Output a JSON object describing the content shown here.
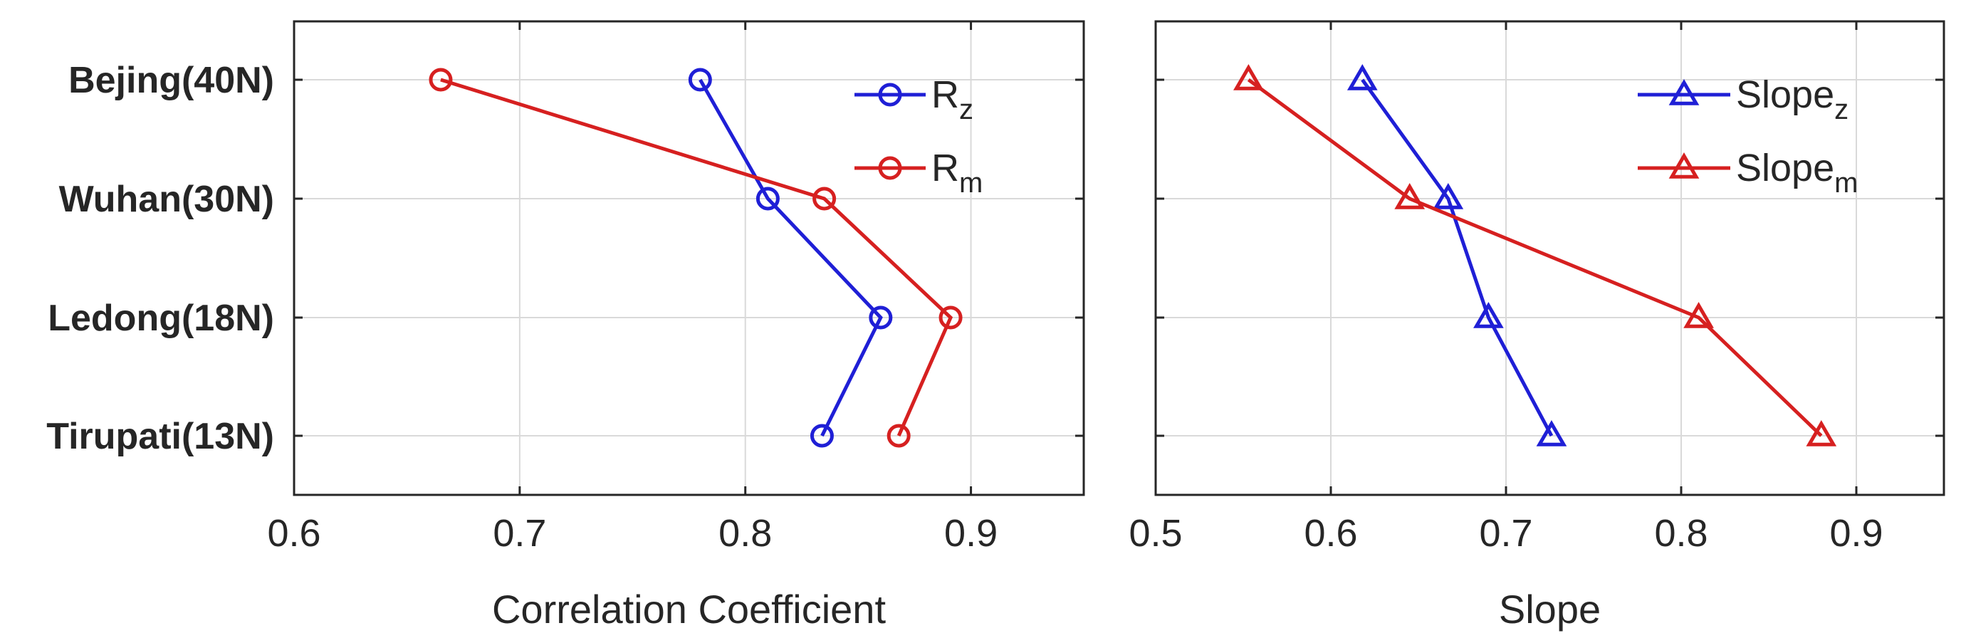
{
  "chart_data": [
    {
      "type": "line",
      "orientation": "horizontal",
      "categories": [
        "Bejing(40N)",
        "Wuhan(30N)",
        "Ledong(18N)",
        "Tirupati(13N)"
      ],
      "xlabel": "Correlation Coefficient",
      "xlim": [
        0.6,
        0.95
      ],
      "xticks": [
        0.6,
        0.7,
        0.8,
        0.9
      ],
      "xtick_labels": [
        "0.6",
        "0.7",
        "0.8",
        "0.9"
      ],
      "grid": true,
      "legend_position": "top-right",
      "marker": "circle",
      "series": [
        {
          "name": "R",
          "subscript": "z",
          "color": "#1f1fd6",
          "values": [
            0.78,
            0.81,
            0.86,
            0.834
          ]
        },
        {
          "name": "R",
          "subscript": "m",
          "color": "#d62020",
          "values": [
            0.665,
            0.835,
            0.891,
            0.868
          ]
        }
      ]
    },
    {
      "type": "line",
      "orientation": "horizontal",
      "categories": [
        "Bejing(40N)",
        "Wuhan(30N)",
        "Ledong(18N)",
        "Tirupati(13N)"
      ],
      "xlabel": "Slope",
      "xlim": [
        0.5,
        0.95
      ],
      "xticks": [
        0.5,
        0.6,
        0.7,
        0.8,
        0.9
      ],
      "xtick_labels": [
        "0.5",
        "0.6",
        "0.7",
        "0.8",
        "0.9"
      ],
      "grid": true,
      "legend_position": "top-right",
      "marker": "triangle",
      "series": [
        {
          "name": "Slope",
          "subscript": "z",
          "color": "#1f1fd6",
          "values": [
            0.618,
            0.667,
            0.69,
            0.726
          ]
        },
        {
          "name": "Slope",
          "subscript": "m",
          "color": "#d62020",
          "values": [
            0.553,
            0.645,
            0.81,
            0.88
          ]
        }
      ]
    }
  ]
}
